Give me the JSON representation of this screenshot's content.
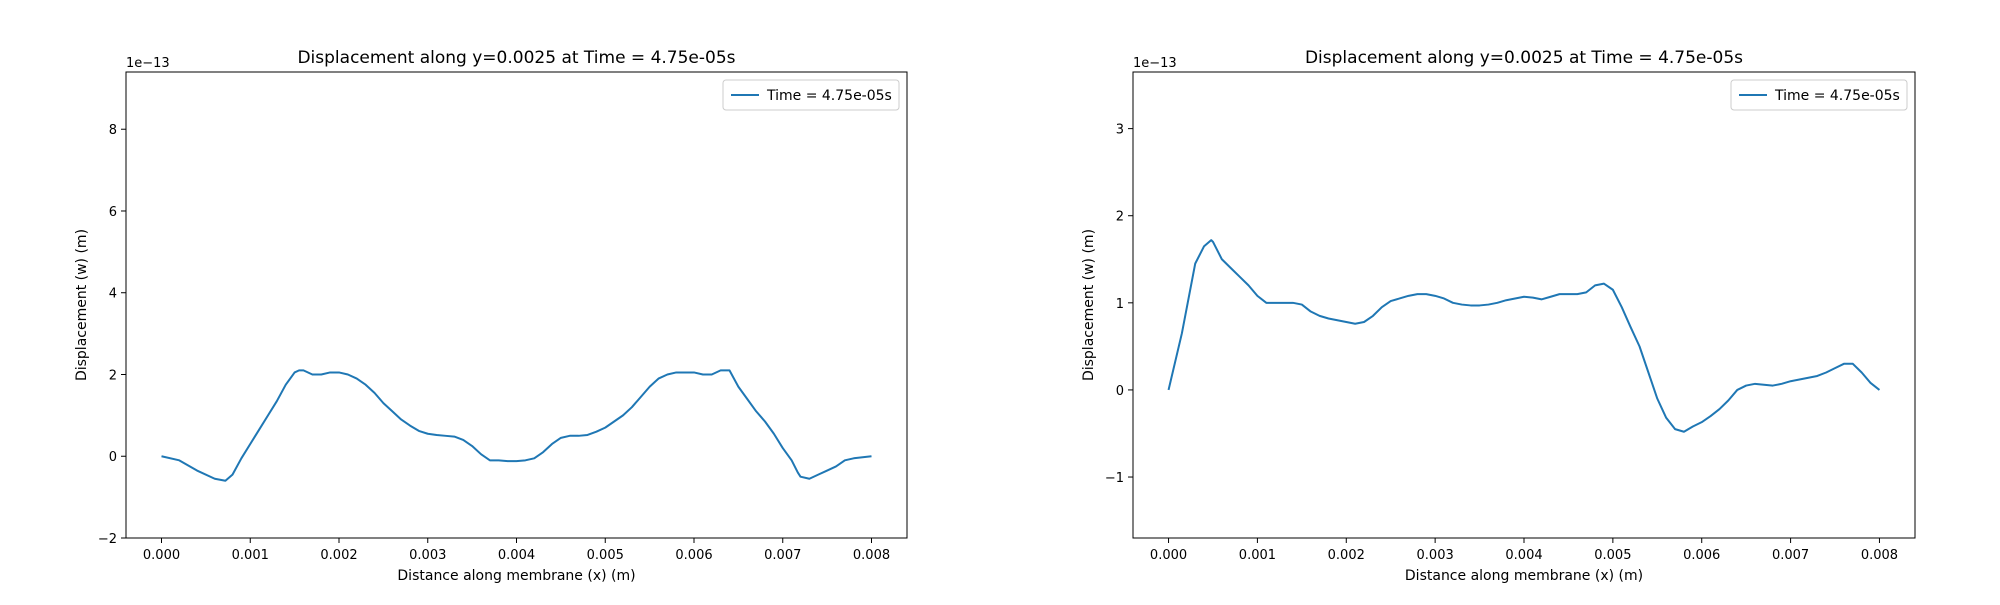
{
  "chart_data": [
    {
      "type": "line",
      "title": "Displacement along y=0.0025 at Time = 4.75e-05s",
      "xlabel": "Distance along membrane (x) (m)",
      "ylabel": "Displacement (w) (m)",
      "y_offset_label": "1e−13",
      "xlim": [
        -0.0004,
        0.0084
      ],
      "ylim": [
        -2,
        9.4
      ],
      "xticks": [
        0.0,
        0.001,
        0.002,
        0.003,
        0.004,
        0.005,
        0.006,
        0.007,
        0.008
      ],
      "xtick_labels": [
        "0.000",
        "0.001",
        "0.002",
        "0.003",
        "0.004",
        "0.005",
        "0.006",
        "0.007",
        "0.008"
      ],
      "yticks": [
        -2,
        0,
        2,
        4,
        6,
        8
      ],
      "ytick_labels": [
        "−2",
        "0",
        "2",
        "4",
        "6",
        "8"
      ],
      "grid": false,
      "legend_position": "top-right",
      "series": [
        {
          "name": "Time = 4.75e-05s",
          "color": "#1f77b4",
          "x": [
            0.0,
            0.0002,
            0.0004,
            0.0006,
            0.00072,
            0.0008,
            0.0009,
            0.001,
            0.0011,
            0.0012,
            0.0013,
            0.0014,
            0.0015,
            0.00155,
            0.0016,
            0.0017,
            0.0018,
            0.0019,
            0.002,
            0.0021,
            0.0022,
            0.0023,
            0.0024,
            0.0025,
            0.0026,
            0.0027,
            0.0028,
            0.0029,
            0.003,
            0.0031,
            0.0032,
            0.0033,
            0.0034,
            0.0035,
            0.0036,
            0.0037,
            0.0038,
            0.0039,
            0.004,
            0.0041,
            0.0042,
            0.0043,
            0.0044,
            0.0045,
            0.0046,
            0.0047,
            0.0048,
            0.0049,
            0.005,
            0.0051,
            0.0052,
            0.0053,
            0.0054,
            0.0055,
            0.0056,
            0.0057,
            0.0058,
            0.0059,
            0.006,
            0.0061,
            0.0062,
            0.0063,
            0.0064,
            0.0065,
            0.0066,
            0.0067,
            0.0068,
            0.0069,
            0.007,
            0.0071,
            0.00717,
            0.0072,
            0.0073,
            0.0074,
            0.0075,
            0.0076,
            0.0077,
            0.0078,
            0.008
          ],
          "y": [
            0.0,
            -0.1,
            -0.35,
            -0.55,
            -0.6,
            -0.45,
            -0.05,
            0.3,
            0.65,
            1.0,
            1.35,
            1.75,
            2.05,
            2.1,
            2.1,
            2.0,
            2.0,
            2.05,
            2.05,
            2.0,
            1.9,
            1.75,
            1.55,
            1.3,
            1.1,
            0.9,
            0.75,
            0.62,
            0.55,
            0.52,
            0.5,
            0.48,
            0.4,
            0.25,
            0.05,
            -0.1,
            -0.1,
            -0.12,
            -0.12,
            -0.1,
            -0.05,
            0.1,
            0.3,
            0.45,
            0.5,
            0.5,
            0.52,
            0.6,
            0.7,
            0.85,
            1.0,
            1.2,
            1.45,
            1.7,
            1.9,
            2.0,
            2.05,
            2.05,
            2.05,
            2.0,
            2.0,
            2.1,
            2.1,
            1.7,
            1.4,
            1.1,
            0.85,
            0.55,
            0.2,
            -0.1,
            -0.4,
            -0.5,
            -0.55,
            -0.45,
            -0.35,
            -0.25,
            -0.1,
            -0.05,
            0.0
          ]
        }
      ]
    },
    {
      "type": "line",
      "title": "Displacement along y=0.0025 at Time = 4.75e-05s",
      "xlabel": "Distance along membrane (x) (m)",
      "ylabel": "Displacement (w) (m)",
      "y_offset_label": "1e−13",
      "xlim": [
        -0.0004,
        0.0084
      ],
      "ylim": [
        -1.7,
        3.65
      ],
      "xticks": [
        0.0,
        0.001,
        0.002,
        0.003,
        0.004,
        0.005,
        0.006,
        0.007,
        0.008
      ],
      "xtick_labels": [
        "0.000",
        "0.001",
        "0.002",
        "0.003",
        "0.004",
        "0.005",
        "0.006",
        "0.007",
        "0.008"
      ],
      "yticks": [
        -1,
        0,
        1,
        2,
        3
      ],
      "ytick_labels": [
        "−1",
        "0",
        "1",
        "2",
        "3"
      ],
      "grid": false,
      "legend_position": "top-right",
      "series": [
        {
          "name": "Time = 4.75e-05s",
          "color": "#1f77b4",
          "x": [
            0.0,
            0.00015,
            0.0003,
            0.0004,
            0.00048,
            0.0005,
            0.0006,
            0.0007,
            0.0008,
            0.0009,
            0.001,
            0.0011,
            0.0012,
            0.0013,
            0.0014,
            0.0015,
            0.0016,
            0.0017,
            0.0018,
            0.0019,
            0.002,
            0.0021,
            0.0022,
            0.0023,
            0.0024,
            0.0025,
            0.0026,
            0.0027,
            0.0028,
            0.0029,
            0.003,
            0.0031,
            0.0032,
            0.0033,
            0.0034,
            0.0035,
            0.0036,
            0.0037,
            0.0038,
            0.0039,
            0.004,
            0.0041,
            0.0042,
            0.0043,
            0.0044,
            0.0045,
            0.0046,
            0.0047,
            0.0048,
            0.0049,
            0.005,
            0.0051,
            0.0052,
            0.0053,
            0.0054,
            0.0055,
            0.0056,
            0.0057,
            0.0058,
            0.0059,
            0.006,
            0.0061,
            0.0062,
            0.0063,
            0.0064,
            0.0065,
            0.0066,
            0.0067,
            0.0068,
            0.0069,
            0.007,
            0.0071,
            0.0072,
            0.0073,
            0.0074,
            0.0075,
            0.0076,
            0.0077,
            0.0078,
            0.0079,
            0.008
          ],
          "y": [
            0.0,
            0.65,
            1.45,
            1.65,
            1.72,
            1.7,
            1.5,
            1.4,
            1.3,
            1.2,
            1.08,
            1.0,
            1.0,
            1.0,
            1.0,
            0.98,
            0.9,
            0.85,
            0.82,
            0.8,
            0.78,
            0.76,
            0.78,
            0.85,
            0.95,
            1.02,
            1.05,
            1.08,
            1.1,
            1.1,
            1.08,
            1.05,
            1.0,
            0.98,
            0.97,
            0.97,
            0.98,
            1.0,
            1.03,
            1.05,
            1.07,
            1.06,
            1.04,
            1.07,
            1.1,
            1.1,
            1.1,
            1.12,
            1.2,
            1.22,
            1.15,
            0.95,
            0.72,
            0.5,
            0.2,
            -0.1,
            -0.32,
            -0.45,
            -0.48,
            -0.42,
            -0.37,
            -0.3,
            -0.22,
            -0.12,
            0.0,
            0.05,
            0.07,
            0.06,
            0.05,
            0.07,
            0.1,
            0.12,
            0.14,
            0.16,
            0.2,
            0.25,
            0.3,
            0.3,
            0.2,
            0.08,
            0.0
          ]
        }
      ]
    }
  ]
}
